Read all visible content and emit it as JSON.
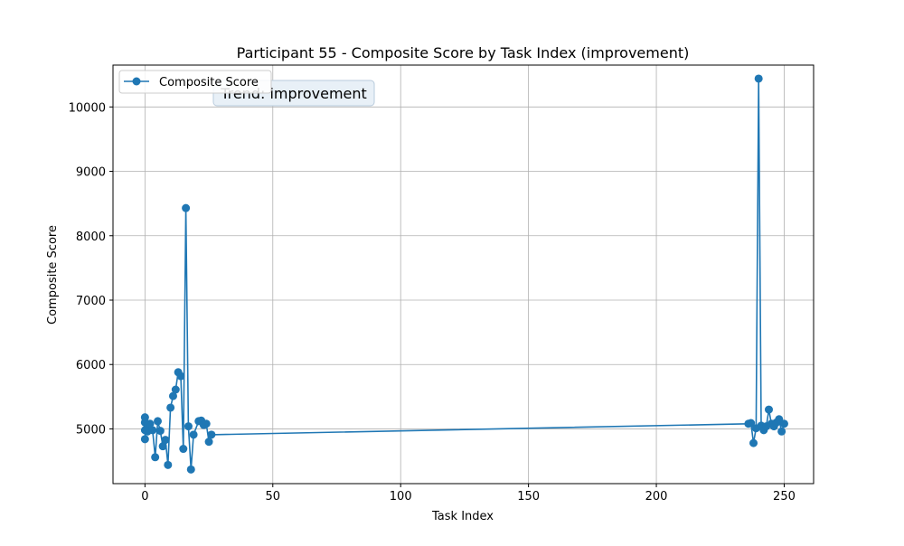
{
  "chart_data": {
    "type": "line",
    "title": "Participant 55 - Composite Score by Task Index (improvement)",
    "xlabel": "Task Index",
    "ylabel": "Composite Score",
    "xlim": [
      -12.5,
      261.5
    ],
    "ylim": [
      4150,
      10650
    ],
    "xticks": [
      0,
      50,
      100,
      150,
      200,
      250
    ],
    "yticks": [
      5000,
      6000,
      7000,
      8000,
      9000,
      10000
    ],
    "grid": true,
    "legend_position": "upper-left",
    "annotation": "Trend: improvement",
    "series": [
      {
        "name": "Composite Score",
        "color": "#1f77b4",
        "marker": "circle",
        "points": [
          [
            0,
            4980
          ],
          [
            0,
            5180
          ],
          [
            0,
            4840
          ],
          [
            0,
            5100
          ],
          [
            1,
            5050
          ],
          [
            1,
            4960
          ],
          [
            2,
            5080
          ],
          [
            3,
            4980
          ],
          [
            4,
            4560
          ],
          [
            5,
            5120
          ],
          [
            6,
            4970
          ],
          [
            7,
            4730
          ],
          [
            8,
            4830
          ],
          [
            9,
            4440
          ],
          [
            10,
            5330
          ],
          [
            11,
            5510
          ],
          [
            12,
            5610
          ],
          [
            13,
            5880
          ],
          [
            14,
            5820
          ],
          [
            15,
            4690
          ],
          [
            16,
            8430
          ],
          [
            17,
            5040
          ],
          [
            18,
            4370
          ],
          [
            19,
            4910
          ],
          [
            21,
            5120
          ],
          [
            22,
            5130
          ],
          [
            23,
            5060
          ],
          [
            24,
            5080
          ],
          [
            25,
            4800
          ],
          [
            26,
            4910
          ],
          [
            236,
            5080
          ],
          [
            237,
            5090
          ],
          [
            238,
            4780
          ],
          [
            239,
            5010
          ],
          [
            240,
            10440
          ],
          [
            241,
            5050
          ],
          [
            242,
            4980
          ],
          [
            243,
            5040
          ],
          [
            244,
            5300
          ],
          [
            245,
            5080
          ],
          [
            246,
            5040
          ],
          [
            247,
            5100
          ],
          [
            248,
            5150
          ],
          [
            249,
            4960
          ],
          [
            250,
            5080
          ]
        ]
      }
    ]
  }
}
